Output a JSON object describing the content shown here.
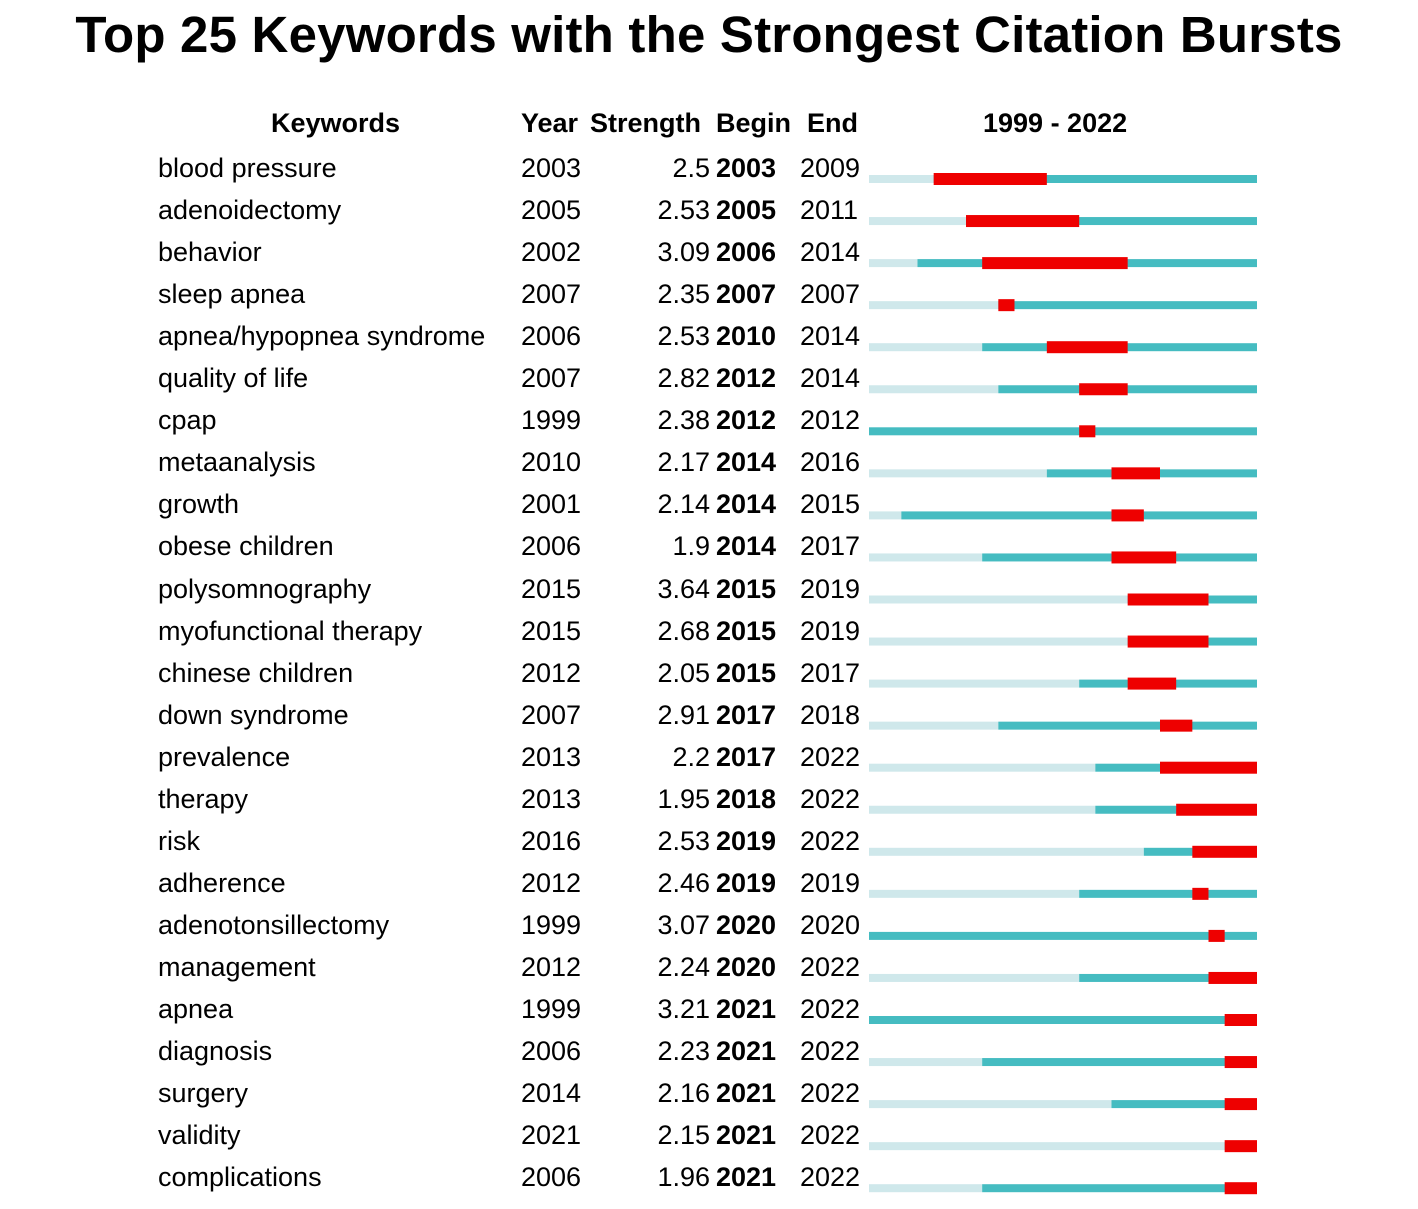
{
  "title": "Top 25 Keywords with the Strongest Citation Bursts",
  "headers": {
    "keywords": "Keywords",
    "year": "Year",
    "strength": "Strength",
    "begin": "Begin",
    "end": "End",
    "range": "1999 - 2022"
  },
  "colors": {
    "before": "#cfe8eb",
    "active": "#45bcc1",
    "burst": "#ee0000"
  },
  "chart_data": {
    "type": "table",
    "title": "Top 25 Keywords with the Strongest Citation Bursts",
    "range_start": 1999,
    "range_end": 2022,
    "columns": [
      "Keywords",
      "Year",
      "Strength",
      "Begin",
      "End"
    ],
    "rows": [
      {
        "keyword": "blood pressure",
        "year": "2003",
        "strength": "2.5",
        "begin": "2003",
        "end": "2009"
      },
      {
        "keyword": "adenoidectomy",
        "year": "2005",
        "strength": "2.53",
        "begin": "2005",
        "end": "2011"
      },
      {
        "keyword": "behavior",
        "year": "2002",
        "strength": "3.09",
        "begin": "2006",
        "end": "2014"
      },
      {
        "keyword": "sleep apnea",
        "year": "2007",
        "strength": "2.35",
        "begin": "2007",
        "end": "2007"
      },
      {
        "keyword": "apnea/hypopnea syndrome",
        "year": "2006",
        "strength": "2.53",
        "begin": "2010",
        "end": "2014"
      },
      {
        "keyword": "quality of life",
        "year": "2007",
        "strength": "2.82",
        "begin": "2012",
        "end": "2014"
      },
      {
        "keyword": "cpap",
        "year": "1999",
        "strength": "2.38",
        "begin": "2012",
        "end": "2012"
      },
      {
        "keyword": "metaanalysis",
        "year": "2010",
        "strength": "2.17",
        "begin": "2014",
        "end": "2016"
      },
      {
        "keyword": "growth",
        "year": "2001",
        "strength": "2.14",
        "begin": "2014",
        "end": "2015"
      },
      {
        "keyword": "obese children",
        "year": "2006",
        "strength": "1.9",
        "begin": "2014",
        "end": "2017"
      },
      {
        "keyword": "polysomnography",
        "year": "2015",
        "strength": "3.64",
        "begin": "2015",
        "end": "2019"
      },
      {
        "keyword": "myofunctional therapy",
        "year": "2015",
        "strength": "2.68",
        "begin": "2015",
        "end": "2019"
      },
      {
        "keyword": "chinese children",
        "year": "2012",
        "strength": "2.05",
        "begin": "2015",
        "end": "2017"
      },
      {
        "keyword": "down syndrome",
        "year": "2007",
        "strength": "2.91",
        "begin": "2017",
        "end": "2018"
      },
      {
        "keyword": "prevalence",
        "year": "2013",
        "strength": "2.2",
        "begin": "2017",
        "end": "2022"
      },
      {
        "keyword": "therapy",
        "year": "2013",
        "strength": "1.95",
        "begin": "2018",
        "end": "2022"
      },
      {
        "keyword": "risk",
        "year": "2016",
        "strength": "2.53",
        "begin": "2019",
        "end": "2022"
      },
      {
        "keyword": "adherence",
        "year": "2012",
        "strength": "2.46",
        "begin": "2019",
        "end": "2019"
      },
      {
        "keyword": "adenotonsillectomy",
        "year": "1999",
        "strength": "3.07",
        "begin": "2020",
        "end": "2020"
      },
      {
        "keyword": "management",
        "year": "2012",
        "strength": "2.24",
        "begin": "2020",
        "end": "2022"
      },
      {
        "keyword": "apnea",
        "year": "1999",
        "strength": "3.21",
        "begin": "2021",
        "end": "2022"
      },
      {
        "keyword": "diagnosis",
        "year": "2006",
        "strength": "2.23",
        "begin": "2021",
        "end": "2022"
      },
      {
        "keyword": "surgery",
        "year": "2014",
        "strength": "2.16",
        "begin": "2021",
        "end": "2022"
      },
      {
        "keyword": "validity",
        "year": "2021",
        "strength": "2.15",
        "begin": "2021",
        "end": "2022"
      },
      {
        "keyword": "complications",
        "year": "2006",
        "strength": "1.96",
        "begin": "2021",
        "end": "2022"
      }
    ]
  }
}
